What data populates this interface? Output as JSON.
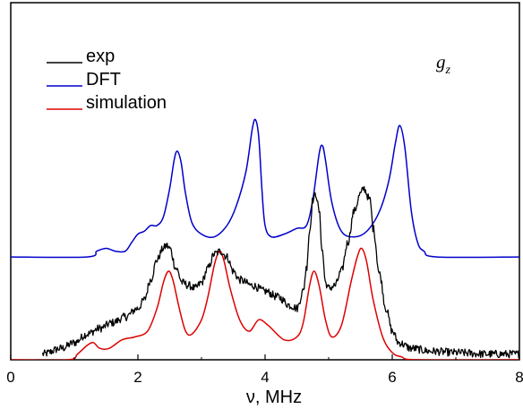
{
  "chart_data": {
    "type": "line",
    "title": "",
    "xlabel": "ν, MHz",
    "ylabel": "",
    "xlim": [
      0,
      8
    ],
    "ylim": [
      0,
      1.25
    ],
    "x_ticks": [
      0,
      2,
      4,
      6,
      8
    ],
    "grid": false,
    "legend_position": "top-left",
    "annotation": {
      "symbol": "g",
      "subscript": "z",
      "position": "top-right"
    },
    "series": [
      {
        "name": "exp",
        "color": "#000000",
        "noisy": true,
        "points": [
          [
            0.5,
            0.02
          ],
          [
            0.8,
            0.04
          ],
          [
            1.0,
            0.06
          ],
          [
            1.2,
            0.09
          ],
          [
            1.4,
            0.11
          ],
          [
            1.6,
            0.13
          ],
          [
            1.8,
            0.15
          ],
          [
            2.0,
            0.18
          ],
          [
            2.1,
            0.21
          ],
          [
            2.2,
            0.28
          ],
          [
            2.3,
            0.35
          ],
          [
            2.4,
            0.39
          ],
          [
            2.45,
            0.4
          ],
          [
            2.5,
            0.39
          ],
          [
            2.6,
            0.32
          ],
          [
            2.7,
            0.27
          ],
          [
            2.8,
            0.26
          ],
          [
            2.9,
            0.25
          ],
          [
            3.0,
            0.27
          ],
          [
            3.1,
            0.32
          ],
          [
            3.2,
            0.37
          ],
          [
            3.3,
            0.38
          ],
          [
            3.4,
            0.36
          ],
          [
            3.5,
            0.31
          ],
          [
            3.6,
            0.28
          ],
          [
            3.8,
            0.26
          ],
          [
            4.0,
            0.24
          ],
          [
            4.2,
            0.22
          ],
          [
            4.4,
            0.19
          ],
          [
            4.5,
            0.18
          ],
          [
            4.6,
            0.24
          ],
          [
            4.65,
            0.32
          ],
          [
            4.7,
            0.45
          ],
          [
            4.75,
            0.56
          ],
          [
            4.8,
            0.58
          ],
          [
            4.85,
            0.52
          ],
          [
            4.9,
            0.38
          ],
          [
            4.95,
            0.27
          ],
          [
            5.0,
            0.25
          ],
          [
            5.1,
            0.26
          ],
          [
            5.2,
            0.31
          ],
          [
            5.3,
            0.41
          ],
          [
            5.4,
            0.52
          ],
          [
            5.5,
            0.58
          ],
          [
            5.55,
            0.6
          ],
          [
            5.65,
            0.56
          ],
          [
            5.7,
            0.46
          ],
          [
            5.8,
            0.3
          ],
          [
            5.9,
            0.18
          ],
          [
            6.0,
            0.1
          ],
          [
            6.1,
            0.06
          ],
          [
            6.3,
            0.04
          ],
          [
            6.6,
            0.03
          ],
          [
            7.0,
            0.025
          ],
          [
            7.5,
            0.02
          ],
          [
            8.0,
            0.02
          ]
        ]
      },
      {
        "name": "DFT",
        "color": "#0000cc",
        "noisy": false,
        "points": [
          [
            0.0,
            0.36
          ],
          [
            1.2,
            0.36
          ],
          [
            1.35,
            0.38
          ],
          [
            1.5,
            0.39
          ],
          [
            1.65,
            0.38
          ],
          [
            1.8,
            0.38
          ],
          [
            1.9,
            0.41
          ],
          [
            2.0,
            0.44
          ],
          [
            2.1,
            0.45
          ],
          [
            2.2,
            0.47
          ],
          [
            2.3,
            0.47
          ],
          [
            2.4,
            0.5
          ],
          [
            2.5,
            0.6
          ],
          [
            2.57,
            0.7
          ],
          [
            2.62,
            0.73
          ],
          [
            2.68,
            0.69
          ],
          [
            2.75,
            0.58
          ],
          [
            2.85,
            0.48
          ],
          [
            3.0,
            0.44
          ],
          [
            3.2,
            0.43
          ],
          [
            3.4,
            0.47
          ],
          [
            3.55,
            0.54
          ],
          [
            3.7,
            0.66
          ],
          [
            3.8,
            0.81
          ],
          [
            3.85,
            0.84
          ],
          [
            3.9,
            0.78
          ],
          [
            3.95,
            0.6
          ],
          [
            4.0,
            0.47
          ],
          [
            4.1,
            0.43
          ],
          [
            4.3,
            0.44
          ],
          [
            4.5,
            0.46
          ],
          [
            4.65,
            0.47
          ],
          [
            4.75,
            0.56
          ],
          [
            4.85,
            0.72
          ],
          [
            4.9,
            0.75
          ],
          [
            4.95,
            0.7
          ],
          [
            5.05,
            0.55
          ],
          [
            5.2,
            0.45
          ],
          [
            5.4,
            0.43
          ],
          [
            5.6,
            0.45
          ],
          [
            5.8,
            0.52
          ],
          [
            5.95,
            0.63
          ],
          [
            6.05,
            0.76
          ],
          [
            6.12,
            0.82
          ],
          [
            6.2,
            0.74
          ],
          [
            6.3,
            0.52
          ],
          [
            6.4,
            0.41
          ],
          [
            6.5,
            0.38
          ],
          [
            6.7,
            0.36
          ],
          [
            8.0,
            0.36
          ]
        ]
      },
      {
        "name": "simulation",
        "color": "#dd0000",
        "noisy": false,
        "points": [
          [
            0.0,
            0.0
          ],
          [
            0.9,
            0.0
          ],
          [
            1.05,
            0.02
          ],
          [
            1.2,
            0.05
          ],
          [
            1.3,
            0.06
          ],
          [
            1.4,
            0.04
          ],
          [
            1.55,
            0.04
          ],
          [
            1.75,
            0.07
          ],
          [
            1.95,
            0.08
          ],
          [
            2.15,
            0.1
          ],
          [
            2.3,
            0.18
          ],
          [
            2.4,
            0.27
          ],
          [
            2.48,
            0.31
          ],
          [
            2.55,
            0.28
          ],
          [
            2.65,
            0.18
          ],
          [
            2.75,
            0.1
          ],
          [
            2.85,
            0.09
          ],
          [
            3.0,
            0.14
          ],
          [
            3.1,
            0.22
          ],
          [
            3.2,
            0.33
          ],
          [
            3.28,
            0.38
          ],
          [
            3.35,
            0.35
          ],
          [
            3.45,
            0.25
          ],
          [
            3.6,
            0.14
          ],
          [
            3.75,
            0.1
          ],
          [
            3.9,
            0.14
          ],
          [
            4.05,
            0.12
          ],
          [
            4.3,
            0.07
          ],
          [
            4.5,
            0.08
          ],
          [
            4.6,
            0.13
          ],
          [
            4.7,
            0.26
          ],
          [
            4.77,
            0.31
          ],
          [
            4.85,
            0.26
          ],
          [
            4.95,
            0.14
          ],
          [
            5.05,
            0.08
          ],
          [
            5.2,
            0.12
          ],
          [
            5.35,
            0.27
          ],
          [
            5.45,
            0.36
          ],
          [
            5.52,
            0.39
          ],
          [
            5.6,
            0.34
          ],
          [
            5.7,
            0.21
          ],
          [
            5.85,
            0.08
          ],
          [
            6.0,
            0.025
          ],
          [
            6.15,
            0.01
          ],
          [
            6.4,
            0.0
          ],
          [
            8.0,
            0.0
          ]
        ]
      }
    ]
  }
}
